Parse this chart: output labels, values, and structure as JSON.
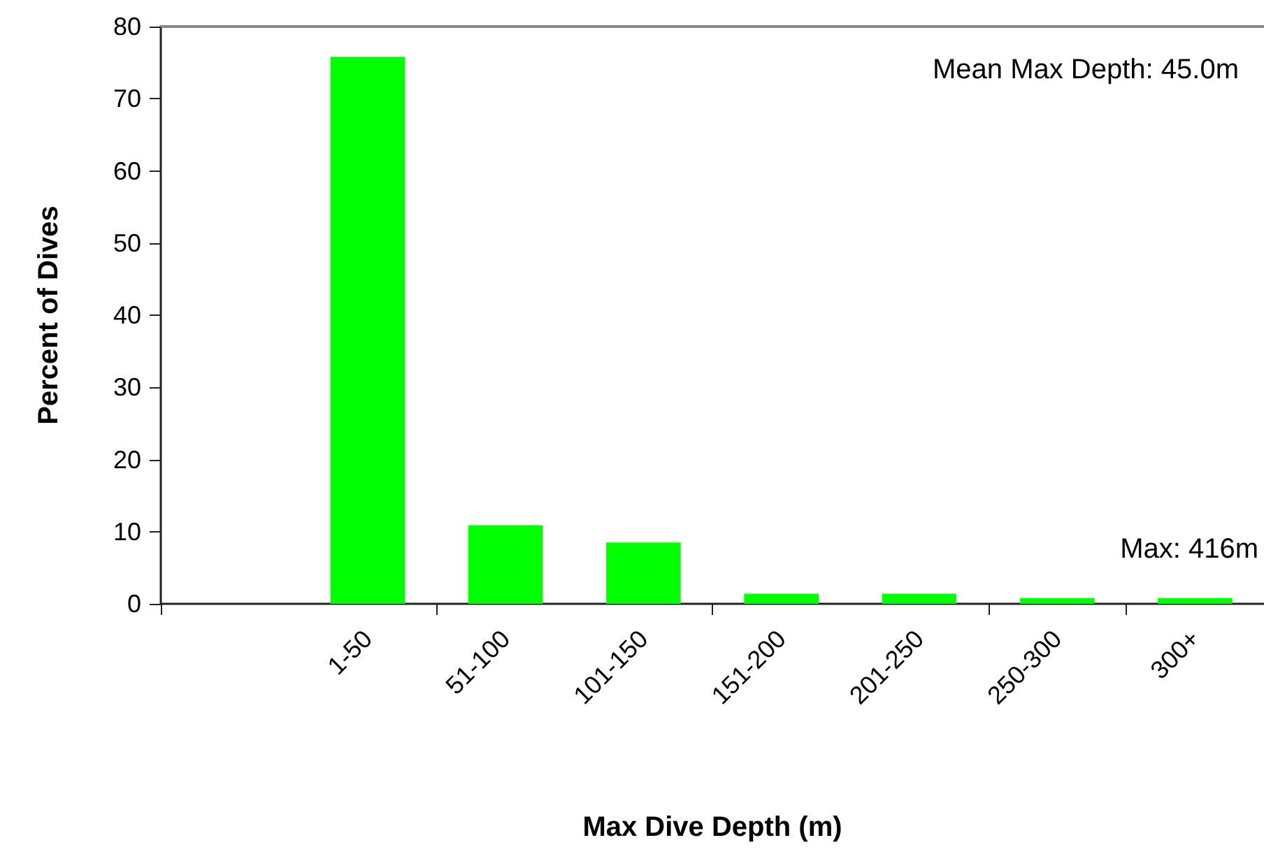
{
  "chart_data": {
    "type": "bar",
    "xlabel": "Max Dive Depth (m)",
    "ylabel": "Percent of Dives",
    "categories": [
      null,
      "1-50",
      "51-100",
      "101-150",
      "151-200",
      "201-250",
      "250-300",
      "300+"
    ],
    "values": [
      null,
      75.8,
      10.9,
      8.5,
      1.4,
      1.4,
      0.8,
      0.8
    ],
    "color": "#00ff00",
    "ylim": [
      0,
      80
    ],
    "yticks": [
      0,
      10,
      20,
      30,
      40,
      50,
      60,
      70,
      80
    ],
    "grid": false,
    "annotations": [
      "Mean Max Depth: 45.0m",
      "Max: 416m"
    ]
  }
}
